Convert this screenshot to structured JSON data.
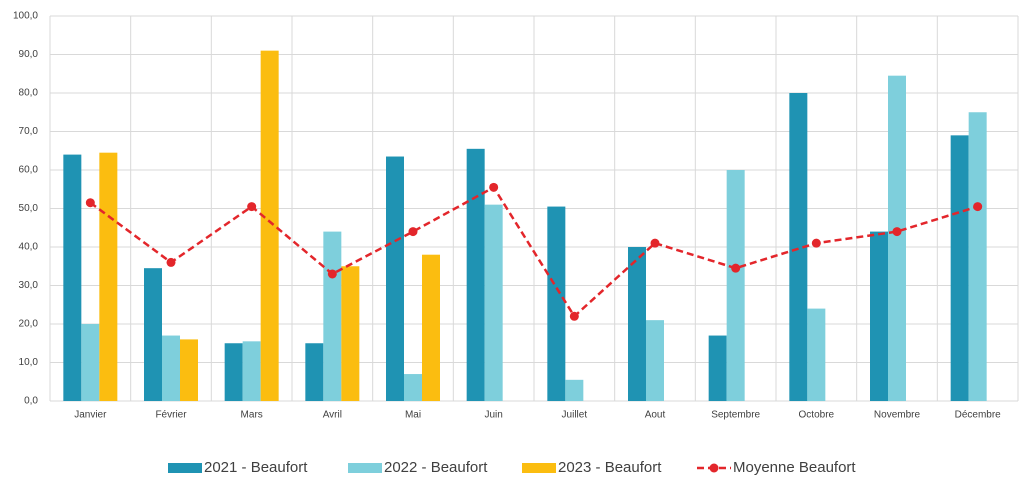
{
  "chart_data": {
    "type": "bar",
    "categories": [
      "Janvier",
      "Février",
      "Mars",
      "Avril",
      "Mai",
      "Juin",
      "Juillet",
      "Aout",
      "Septembre",
      "Octobre",
      "Novembre",
      "Décembre"
    ],
    "series": [
      {
        "name": "2021 - Beaufort",
        "type": "bar",
        "color": "#1f93b3",
        "values": [
          64,
          34.5,
          15,
          15,
          63.5,
          65.5,
          50.5,
          40,
          17,
          80,
          44,
          69
        ]
      },
      {
        "name": "2022 - Beaufort",
        "type": "bar",
        "color": "#7ecfdc",
        "values": [
          20,
          17,
          15.5,
          44,
          7,
          51,
          5.5,
          21,
          60,
          24,
          84.5,
          75
        ]
      },
      {
        "name": "2023 - Beaufort",
        "type": "bar",
        "color": "#fbbd10",
        "values": [
          64.5,
          16,
          91,
          35,
          38,
          null,
          null,
          null,
          null,
          null,
          null,
          null
        ]
      },
      {
        "name": "Moyenne Beaufort",
        "type": "line",
        "color": "#e3262b",
        "values": [
          51.5,
          36,
          50.5,
          33,
          44,
          55.5,
          22,
          41,
          34.5,
          41,
          44,
          50.5
        ]
      }
    ],
    "ylim": [
      0,
      100
    ],
    "yticks": [
      {
        "value": 0,
        "label": "0,0"
      },
      {
        "value": 10,
        "label": "10,0"
      },
      {
        "value": 20,
        "label": "20,0"
      },
      {
        "value": 30,
        "label": "30,0"
      },
      {
        "value": 40,
        "label": "40,0"
      },
      {
        "value": 50,
        "label": "50,0"
      },
      {
        "value": 60,
        "label": "60,0"
      },
      {
        "value": 70,
        "label": "70,0"
      },
      {
        "value": 80,
        "label": "80,0"
      },
      {
        "value": 90,
        "label": "90,0"
      },
      {
        "value": 100,
        "label": "100,0"
      }
    ],
    "grid": true,
    "legend": "bottom"
  }
}
